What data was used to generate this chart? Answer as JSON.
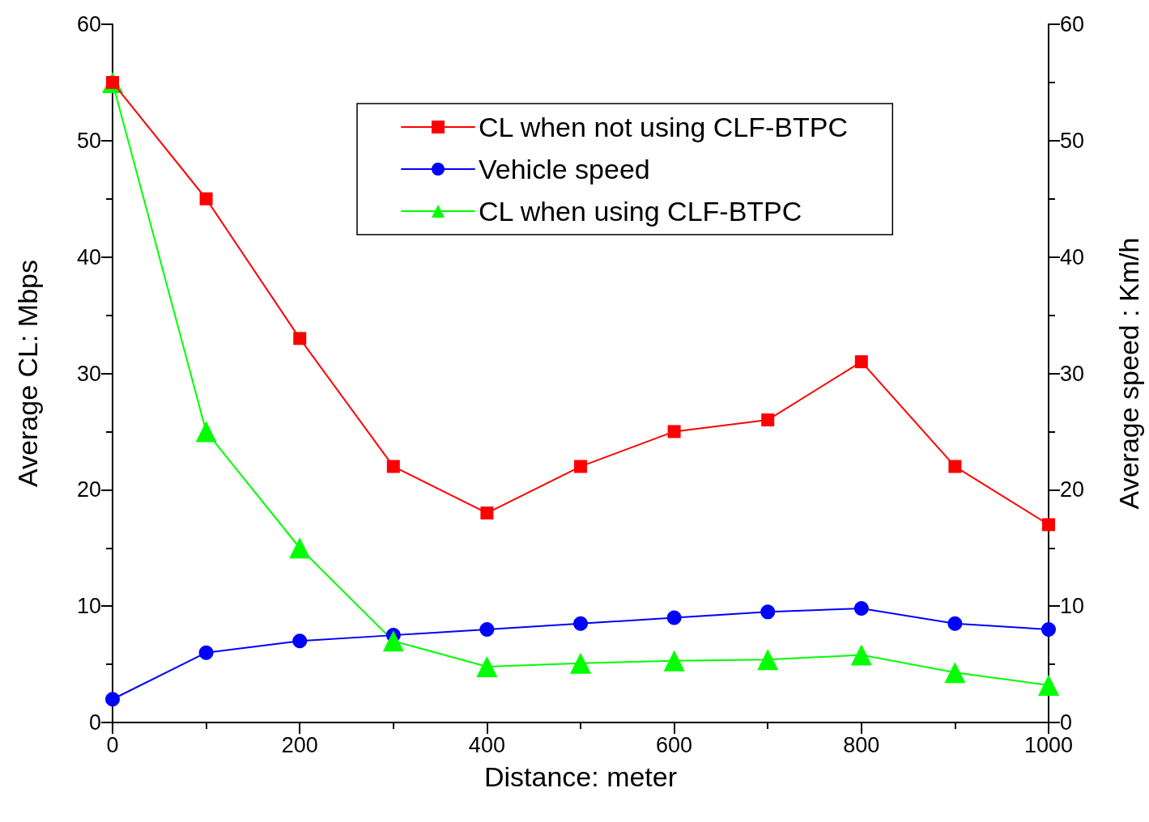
{
  "chart_data": {
    "type": "line",
    "xlabel": "Distance: meter",
    "ylabel": "Average CL: Mbps",
    "y2label": "Average speed : Km/h",
    "x": [
      0,
      100,
      200,
      300,
      400,
      500,
      600,
      700,
      800,
      900,
      1000
    ],
    "series": [
      {
        "name": "CL when not using CLF-BTPC",
        "color": "#ff0000",
        "marker": "square",
        "values": [
          55,
          45,
          33,
          22,
          18,
          22,
          25,
          26,
          31,
          22,
          17
        ]
      },
      {
        "name": "Vehicle speed",
        "color": "#0000ff",
        "marker": "circle",
        "axis": "y2",
        "values": [
          2,
          6,
          7,
          7.5,
          8,
          8.5,
          9,
          9.5,
          9.8,
          8.5,
          8
        ]
      },
      {
        "name": "CL when using CLF-BTPC",
        "color": "#00ff00",
        "marker": "triangle",
        "values": [
          55,
          25,
          15,
          7,
          4.8,
          5.1,
          5.3,
          5.4,
          5.8,
          4.3,
          3.2
        ]
      }
    ],
    "xlim": [
      0,
      1000
    ],
    "xticks": [
      0,
      200,
      400,
      600,
      800,
      1000
    ],
    "ylim": [
      0,
      60
    ],
    "yticks": [
      0,
      10,
      20,
      30,
      40,
      50,
      60
    ],
    "y2lim": [
      0,
      60
    ],
    "y2ticks": [
      0,
      10,
      20,
      30,
      40,
      50,
      60
    ],
    "grid": false,
    "legend": "top right",
    "line_style": "solid"
  }
}
